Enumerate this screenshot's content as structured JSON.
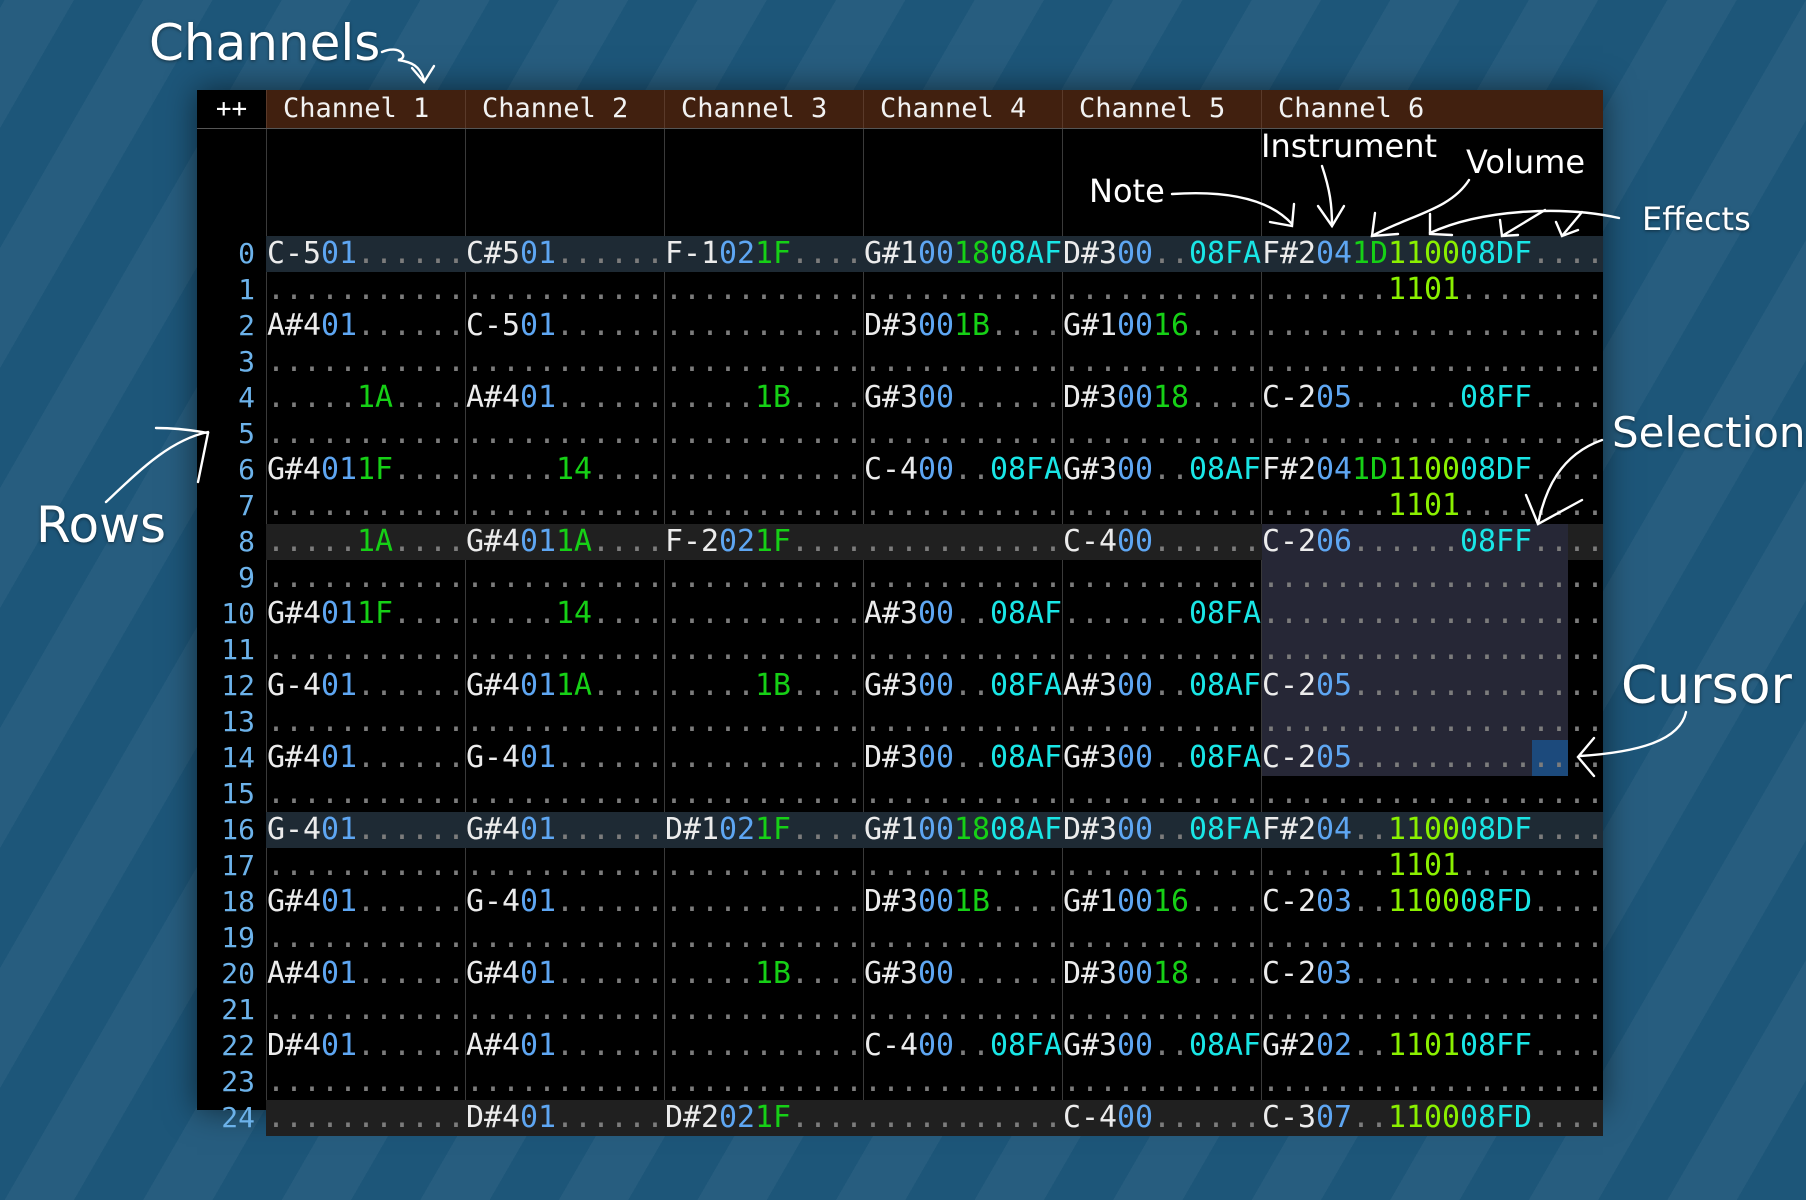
{
  "header": {
    "corner_label": "++",
    "channels": [
      "Channel 1",
      "Channel 2",
      "Channel 3",
      "Channel 4",
      "Channel 5",
      "Channel 6"
    ]
  },
  "channel_fields": [
    [
      "note",
      "instrument",
      "volume",
      "effect1"
    ],
    [
      "note",
      "instrument",
      "volume",
      "effect1"
    ],
    [
      "note",
      "instrument",
      "volume",
      "effect1"
    ],
    [
      "note",
      "instrument",
      "volume",
      "effect1"
    ],
    [
      "note",
      "instrument",
      "volume",
      "effect1"
    ],
    [
      "note",
      "instrument",
      "volume",
      "effect1",
      "effect2",
      "effect3"
    ]
  ],
  "colors": {
    "note": "#ececec",
    "instrument": "#5ea6f2",
    "volume": "#16d016",
    "effect_08": "#19e6e6",
    "effect_11": "#8af000",
    "empty_dot": "#7c7c7c",
    "row_number": "#6cb2ea",
    "header_bg": "#41200f",
    "selection": "#262736",
    "cursor": "#1c4a7c"
  },
  "rows": [
    {
      "n": "0",
      "cells": [
        [
          "C-5",
          "01",
          "",
          ""
        ],
        [
          "C#5",
          "01",
          "",
          ""
        ],
        [
          "F-1",
          "02",
          "1F",
          ""
        ],
        [
          "G#1",
          "00",
          "18",
          "08AF"
        ],
        [
          "D#3",
          "00",
          "",
          "08FA"
        ],
        [
          "F#2",
          "04",
          "1D",
          "1100",
          "08DF",
          ""
        ]
      ]
    },
    {
      "n": "1",
      "cells": [
        [
          "",
          "",
          "",
          ""
        ],
        [
          "",
          "",
          "",
          ""
        ],
        [
          "",
          "",
          "",
          ""
        ],
        [
          "",
          "",
          "",
          ""
        ],
        [
          "",
          "",
          "",
          ""
        ],
        [
          "",
          "",
          "",
          "1101",
          "",
          ""
        ]
      ]
    },
    {
      "n": "2",
      "cells": [
        [
          "A#4",
          "01",
          "",
          ""
        ],
        [
          "C-5",
          "01",
          "",
          ""
        ],
        [
          "",
          "",
          "",
          ""
        ],
        [
          "D#3",
          "00",
          "1B",
          ""
        ],
        [
          "G#1",
          "00",
          "16",
          ""
        ],
        [
          "",
          "",
          "",
          "",
          "",
          ""
        ]
      ]
    },
    {
      "n": "3",
      "cells": [
        [
          "",
          "",
          "",
          ""
        ],
        [
          "",
          "",
          "",
          ""
        ],
        [
          "",
          "",
          "",
          ""
        ],
        [
          "",
          "",
          "",
          ""
        ],
        [
          "",
          "",
          "",
          ""
        ],
        [
          "",
          "",
          "",
          "",
          "",
          ""
        ]
      ]
    },
    {
      "n": "4",
      "cells": [
        [
          "",
          "",
          "1A",
          ""
        ],
        [
          "A#4",
          "01",
          "",
          ""
        ],
        [
          "",
          "",
          "1B",
          ""
        ],
        [
          "G#3",
          "00",
          "",
          ""
        ],
        [
          "D#3",
          "00",
          "18",
          ""
        ],
        [
          "C-2",
          "05",
          "",
          "",
          "08FF",
          ""
        ]
      ]
    },
    {
      "n": "5",
      "cells": [
        [
          "",
          "",
          "",
          ""
        ],
        [
          "",
          "",
          "",
          ""
        ],
        [
          "",
          "",
          "",
          ""
        ],
        [
          "",
          "",
          "",
          ""
        ],
        [
          "",
          "",
          "",
          ""
        ],
        [
          "",
          "",
          "",
          "",
          "",
          ""
        ]
      ]
    },
    {
      "n": "6",
      "cells": [
        [
          "G#4",
          "01",
          "1F",
          ""
        ],
        [
          "",
          "",
          "14",
          ""
        ],
        [
          "",
          "",
          "",
          ""
        ],
        [
          "C-4",
          "00",
          "",
          "08FA"
        ],
        [
          "G#3",
          "00",
          "",
          "08AF"
        ],
        [
          "F#2",
          "04",
          "1D",
          "1100",
          "08DF",
          ""
        ]
      ]
    },
    {
      "n": "7",
      "cells": [
        [
          "",
          "",
          "",
          ""
        ],
        [
          "",
          "",
          "",
          ""
        ],
        [
          "",
          "",
          "",
          ""
        ],
        [
          "",
          "",
          "",
          ""
        ],
        [
          "",
          "",
          "",
          ""
        ],
        [
          "",
          "",
          "",
          "1101",
          "",
          ""
        ]
      ]
    },
    {
      "n": "8",
      "cells": [
        [
          "",
          "",
          "1A",
          ""
        ],
        [
          "G#4",
          "01",
          "1A",
          ""
        ],
        [
          "F-2",
          "02",
          "1F",
          ""
        ],
        [
          "",
          "",
          "",
          ""
        ],
        [
          "C-4",
          "00",
          "",
          ""
        ],
        [
          "C-2",
          "06",
          "",
          "",
          "08FF",
          ""
        ]
      ]
    },
    {
      "n": "9",
      "cells": [
        [
          "",
          "",
          "",
          ""
        ],
        [
          "",
          "",
          "",
          ""
        ],
        [
          "",
          "",
          "",
          ""
        ],
        [
          "",
          "",
          "",
          ""
        ],
        [
          "",
          "",
          "",
          ""
        ],
        [
          "",
          "",
          "",
          "",
          "",
          ""
        ]
      ]
    },
    {
      "n": "10",
      "cells": [
        [
          "G#4",
          "01",
          "1F",
          ""
        ],
        [
          "",
          "",
          "14",
          ""
        ],
        [
          "",
          "",
          "",
          ""
        ],
        [
          "A#3",
          "00",
          "",
          "08AF"
        ],
        [
          "",
          "",
          "",
          "08FA"
        ],
        [
          "",
          "",
          "",
          "",
          "",
          ""
        ]
      ]
    },
    {
      "n": "11",
      "cells": [
        [
          "",
          "",
          "",
          ""
        ],
        [
          "",
          "",
          "",
          ""
        ],
        [
          "",
          "",
          "",
          ""
        ],
        [
          "",
          "",
          "",
          ""
        ],
        [
          "",
          "",
          "",
          ""
        ],
        [
          "",
          "",
          "",
          "",
          "",
          ""
        ]
      ]
    },
    {
      "n": "12",
      "cells": [
        [
          "G-4",
          "01",
          "",
          ""
        ],
        [
          "G#4",
          "01",
          "1A",
          ""
        ],
        [
          "",
          "",
          "1B",
          ""
        ],
        [
          "G#3",
          "00",
          "",
          "08FA"
        ],
        [
          "A#3",
          "00",
          "",
          "08AF"
        ],
        [
          "C-2",
          "05",
          "",
          "",
          "",
          ""
        ]
      ]
    },
    {
      "n": "13",
      "cells": [
        [
          "",
          "",
          "",
          ""
        ],
        [
          "",
          "",
          "",
          ""
        ],
        [
          "",
          "",
          "",
          ""
        ],
        [
          "",
          "",
          "",
          ""
        ],
        [
          "",
          "",
          "",
          ""
        ],
        [
          "",
          "",
          "",
          "",
          "",
          ""
        ]
      ]
    },
    {
      "n": "14",
      "cells": [
        [
          "G#4",
          "01",
          "",
          ""
        ],
        [
          "G-4",
          "01",
          "",
          ""
        ],
        [
          "",
          "",
          "",
          ""
        ],
        [
          "D#3",
          "00",
          "",
          "08AF"
        ],
        [
          "G#3",
          "00",
          "",
          "08FA"
        ],
        [
          "C-2",
          "05",
          "",
          "",
          "",
          ""
        ]
      ]
    },
    {
      "n": "15",
      "cells": [
        [
          "",
          "",
          "",
          ""
        ],
        [
          "",
          "",
          "",
          ""
        ],
        [
          "",
          "",
          "",
          ""
        ],
        [
          "",
          "",
          "",
          ""
        ],
        [
          "",
          "",
          "",
          ""
        ],
        [
          "",
          "",
          "",
          "",
          "",
          ""
        ]
      ]
    },
    {
      "n": "16",
      "cells": [
        [
          "G-4",
          "01",
          "",
          ""
        ],
        [
          "G#4",
          "01",
          "",
          ""
        ],
        [
          "D#1",
          "02",
          "1F",
          ""
        ],
        [
          "G#1",
          "00",
          "18",
          "08AF"
        ],
        [
          "D#3",
          "00",
          "",
          "08FA"
        ],
        [
          "F#2",
          "04",
          "",
          "1100",
          "08DF",
          ""
        ]
      ]
    },
    {
      "n": "17",
      "cells": [
        [
          "",
          "",
          "",
          ""
        ],
        [
          "",
          "",
          "",
          ""
        ],
        [
          "",
          "",
          "",
          ""
        ],
        [
          "",
          "",
          "",
          ""
        ],
        [
          "",
          "",
          "",
          ""
        ],
        [
          "",
          "",
          "",
          "1101",
          "",
          ""
        ]
      ]
    },
    {
      "n": "18",
      "cells": [
        [
          "G#4",
          "01",
          "",
          ""
        ],
        [
          "G-4",
          "01",
          "",
          ""
        ],
        [
          "",
          "",
          "",
          ""
        ],
        [
          "D#3",
          "00",
          "1B",
          ""
        ],
        [
          "G#1",
          "00",
          "16",
          ""
        ],
        [
          "C-2",
          "03",
          "",
          "1100",
          "08FD",
          ""
        ]
      ]
    },
    {
      "n": "19",
      "cells": [
        [
          "",
          "",
          "",
          ""
        ],
        [
          "",
          "",
          "",
          ""
        ],
        [
          "",
          "",
          "",
          ""
        ],
        [
          "",
          "",
          "",
          ""
        ],
        [
          "",
          "",
          "",
          ""
        ],
        [
          "",
          "",
          "",
          "",
          "",
          ""
        ]
      ]
    },
    {
      "n": "20",
      "cells": [
        [
          "A#4",
          "01",
          "",
          ""
        ],
        [
          "G#4",
          "01",
          "",
          ""
        ],
        [
          "",
          "",
          "1B",
          ""
        ],
        [
          "G#3",
          "00",
          "",
          ""
        ],
        [
          "D#3",
          "00",
          "18",
          ""
        ],
        [
          "C-2",
          "03",
          "",
          "",
          "",
          ""
        ]
      ]
    },
    {
      "n": "21",
      "cells": [
        [
          "",
          "",
          "",
          ""
        ],
        [
          "",
          "",
          "",
          ""
        ],
        [
          "",
          "",
          "",
          ""
        ],
        [
          "",
          "",
          "",
          ""
        ],
        [
          "",
          "",
          "",
          ""
        ],
        [
          "",
          "",
          "",
          "",
          "",
          ""
        ]
      ]
    },
    {
      "n": "22",
      "cells": [
        [
          "D#4",
          "01",
          "",
          ""
        ],
        [
          "A#4",
          "01",
          "",
          ""
        ],
        [
          "",
          "",
          "",
          ""
        ],
        [
          "C-4",
          "00",
          "",
          "08FA"
        ],
        [
          "G#3",
          "00",
          "",
          "08AF"
        ],
        [
          "G#2",
          "02",
          "",
          "1101",
          "08FF",
          ""
        ]
      ]
    },
    {
      "n": "23",
      "cells": [
        [
          "",
          "",
          "",
          ""
        ],
        [
          "",
          "",
          "",
          ""
        ],
        [
          "",
          "",
          "",
          ""
        ],
        [
          "",
          "",
          "",
          ""
        ],
        [
          "",
          "",
          "",
          ""
        ],
        [
          "",
          "",
          "",
          "",
          "",
          ""
        ]
      ]
    },
    {
      "n": "24",
      "cells": [
        [
          "",
          "",
          "",
          ""
        ],
        [
          "D#4",
          "01",
          "",
          ""
        ],
        [
          "D#2",
          "02",
          "1F",
          ""
        ],
        [
          "",
          "",
          "",
          ""
        ],
        [
          "C-4",
          "00",
          "",
          ""
        ],
        [
          "C-3",
          "07",
          "",
          "1100",
          "08FD",
          ""
        ]
      ]
    }
  ],
  "selection": {
    "channel": 6,
    "first_row": 8,
    "last_row": 14,
    "first_field": "note",
    "last_field": "effect3"
  },
  "cursor": {
    "channel": 6,
    "row": 14,
    "field": "effect3"
  },
  "annotations": {
    "channels": "Channels",
    "rows": "Rows",
    "note": "Note",
    "instrument": "Instrument",
    "volume": "Volume",
    "effects": "Effects",
    "selection": "Selection",
    "cursor": "Cursor"
  }
}
